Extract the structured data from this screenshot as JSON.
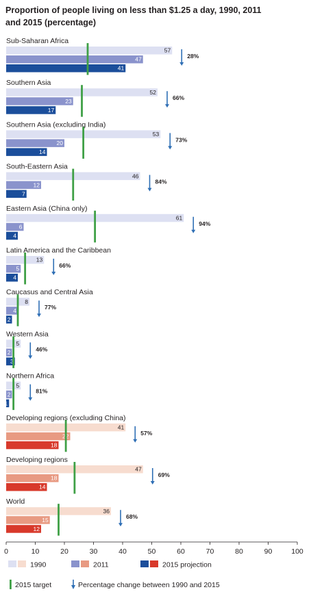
{
  "chart_data": {
    "type": "bar",
    "title_lines": [
      "Proportion of people living on less than $1.25 a day, 1990, 2011",
      "and 2015 (percentage)"
    ],
    "xlim": [
      0,
      100
    ],
    "xticks": [
      0,
      10,
      20,
      30,
      40,
      50,
      60,
      70,
      80,
      90,
      100
    ],
    "series_names": [
      "1990",
      "2011",
      "2015 projection"
    ],
    "groups": [
      {
        "name": "Sub-Saharan Africa",
        "values": [
          57,
          47,
          41
        ],
        "target": 28,
        "change": "28%",
        "developing": false
      },
      {
        "name": "Southern Asia",
        "values": [
          52,
          23,
          17
        ],
        "target": 26,
        "change": "66%",
        "developing": false
      },
      {
        "name": "Southern Asia (excluding India)",
        "values": [
          53,
          20,
          14
        ],
        "target": 26.5,
        "change": "73%",
        "developing": false
      },
      {
        "name": "South-Eastern Asia",
        "values": [
          46,
          12,
          7
        ],
        "target": 23,
        "change": "84%",
        "developing": false
      },
      {
        "name": "Eastern Asia (China only)",
        "values": [
          61,
          6,
          4
        ],
        "target": 30.5,
        "change": "94%",
        "developing": false
      },
      {
        "name": "Latin America and the Caribbean",
        "values": [
          13,
          5,
          4
        ],
        "target": 6.5,
        "change": "66%",
        "developing": false
      },
      {
        "name": "Caucasus and Central Asia",
        "values": [
          8,
          4,
          2
        ],
        "target": 4,
        "change": "77%",
        "developing": false
      },
      {
        "name": "Western Asia",
        "values": [
          5,
          2,
          3
        ],
        "target": 2.5,
        "change": "46%",
        "developing": false
      },
      {
        "name": "Northern Africa",
        "values": [
          5,
          2,
          1
        ],
        "target": 2.5,
        "change": "81%",
        "developing": false
      },
      {
        "name": "Developing regions (excluding China)",
        "values": [
          41,
          22,
          18
        ],
        "target": 20.5,
        "change": "57%",
        "developing": true
      },
      {
        "name": "Developing regions",
        "values": [
          47,
          18,
          14
        ],
        "target": 23.5,
        "change": "69%",
        "developing": true
      },
      {
        "name": "World",
        "values": [
          36,
          15,
          12
        ],
        "target": 18,
        "change": "68%",
        "developing": true
      }
    ],
    "legend": {
      "y1990": "1990",
      "y2011": "2011",
      "proj": "2015 projection",
      "target": "2015 target",
      "change": "Percentage change between 1990 and 2015"
    }
  },
  "colors": {
    "blue_1990": "#dde0f2",
    "blue_2011": "#8a93cc",
    "blue_2015": "#1b4e9b",
    "red_1990": "#f7dccf",
    "red_2011": "#e89a82",
    "red_2015": "#d8392b",
    "target": "#3fa046",
    "arrow": "#2f6fb5",
    "text": "#231f20"
  }
}
